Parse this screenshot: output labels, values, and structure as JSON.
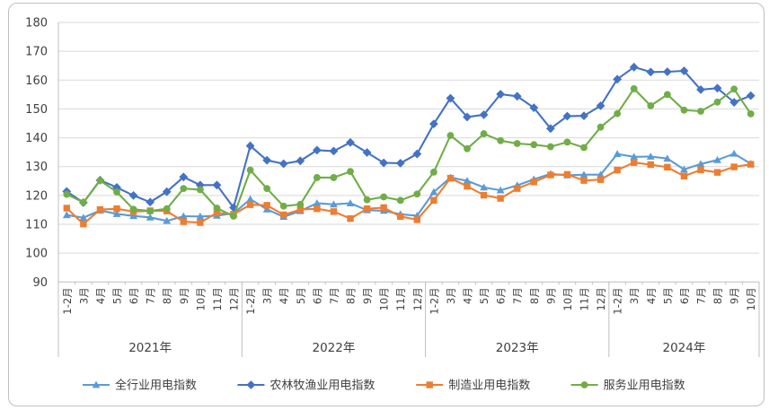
{
  "chart_data": {
    "type": "line",
    "title": "",
    "grid": true,
    "legend_position": "bottom",
    "y_axis": {
      "min": 90,
      "max": 180,
      "step": 10,
      "ticks": [
        "90",
        "100",
        "110",
        "120",
        "130",
        "140",
        "150",
        "160",
        "170",
        "180"
      ]
    },
    "x_axis": {
      "groups": [
        {
          "year": "2021年",
          "months": [
            "1-2月",
            "3月",
            "4月",
            "5月",
            "6月",
            "7月",
            "8月",
            "9月",
            "10月",
            "11月",
            "12月"
          ]
        },
        {
          "year": "2022年",
          "months": [
            "1-2月",
            "3月",
            "4月",
            "5月",
            "6月",
            "7月",
            "8月",
            "9月",
            "10月",
            "11月",
            "12月"
          ]
        },
        {
          "year": "2023年",
          "months": [
            "1-2月",
            "3月",
            "4月",
            "5月",
            "6月",
            "7月",
            "8月",
            "9月",
            "10月",
            "11月",
            "12月"
          ]
        },
        {
          "year": "2024年",
          "months": [
            "1-2月",
            "3月",
            "4月",
            "5月",
            "6月",
            "7月",
            "8月",
            "9月",
            "10月"
          ]
        }
      ]
    },
    "series": [
      {
        "name": "全行业用电指数",
        "color": "#5B9BD5",
        "marker": "triangle",
        "values": [
          113.2,
          112.3,
          114.8,
          113.6,
          112.9,
          112.4,
          111.2,
          112.8,
          112.7,
          113.0,
          113.8,
          118.7,
          115.2,
          112.6,
          114.6,
          117.3,
          116.9,
          117.3,
          114.9,
          114.7,
          113.5,
          113.0,
          121.2,
          126.2,
          125.1,
          122.8,
          121.8,
          123.5,
          125.6,
          127.5,
          127.0,
          127.2,
          127.2,
          134.4,
          133.4,
          133.5,
          132.8,
          129.0,
          130.9,
          132.3,
          134.5,
          131.0
        ]
      },
      {
        "name": "农林牧渔业用电指数",
        "color": "#4472C4",
        "marker": "diamond",
        "values": [
          121.4,
          117.5,
          125.3,
          122.8,
          120.0,
          117.7,
          121.3,
          126.4,
          123.6,
          123.6,
          115.8,
          137.2,
          132.2,
          131.0,
          132.0,
          135.7,
          135.4,
          138.4,
          134.9,
          131.3,
          131.2,
          134.4,
          144.8,
          153.7,
          147.2,
          148.0,
          155.1,
          154.4,
          150.4,
          143.2,
          147.5,
          147.6,
          151.1,
          160.3,
          164.5,
          162.8,
          162.9,
          163.2,
          156.7,
          157.2,
          152.3,
          154.6
        ]
      },
      {
        "name": "制造业用电指数",
        "color": "#ED7D31",
        "marker": "square",
        "values": [
          115.6,
          110.1,
          115.1,
          115.4,
          114.4,
          114.7,
          114.6,
          110.9,
          110.6,
          114.0,
          113.5,
          116.8,
          116.6,
          113.3,
          115.1,
          115.4,
          114.4,
          112.0,
          115.4,
          115.8,
          112.7,
          111.6,
          118.3,
          126.0,
          123.2,
          120.1,
          119.0,
          122.4,
          124.7,
          127.1,
          127.3,
          125.2,
          125.5,
          128.8,
          131.4,
          130.7,
          129.8,
          126.7,
          128.9,
          128.0,
          129.9,
          130.8
        ]
      },
      {
        "name": "服务业用电指数",
        "color": "#70AD47",
        "marker": "circle",
        "values": [
          120.4,
          117.6,
          125.2,
          121.2,
          115.2,
          114.6,
          115.4,
          122.4,
          122.0,
          115.6,
          112.8,
          128.8,
          122.4,
          116.3,
          116.9,
          126.2,
          126.2,
          128.3,
          118.5,
          119.5,
          118.3,
          120.5,
          128.1,
          140.8,
          136.2,
          141.4,
          139.0,
          138.0,
          137.6,
          136.9,
          138.5,
          136.6,
          143.7,
          148.4,
          157.0,
          151.1,
          155.0,
          149.6,
          149.2,
          152.4,
          156.9,
          148.3
        ]
      }
    ],
    "colors": {
      "gridline": "#D9D9D9",
      "axis": "#BFBFBF",
      "text": "#404040",
      "frame_border": "#BFBFBF"
    }
  }
}
